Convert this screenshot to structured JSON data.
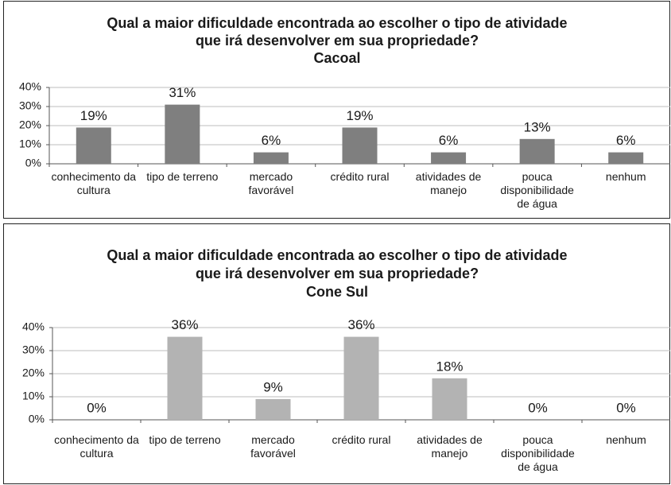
{
  "chart_data": [
    {
      "type": "bar",
      "title": [
        "Qual a maior dificuldade encontrada ao escolher o tipo de atividade",
        "que irá desenvolver em sua propriedade?",
        "Cacoal"
      ],
      "categories": [
        "conhecimento da cultura",
        "tipo de terreno",
        "mercado favorável",
        "crédito rural",
        "atividades de manejo",
        "pouca disponibilidade de água",
        "nenhum"
      ],
      "values": [
        19,
        31,
        6,
        19,
        6,
        13,
        6
      ],
      "value_labels": [
        "19%",
        "31%",
        "6%",
        "19%",
        "6%",
        "13%",
        "6%"
      ],
      "color": "#7f7f7f",
      "ylim": [
        0,
        40
      ],
      "yticks": [
        {
          "value": 0,
          "label": "0%"
        },
        {
          "value": 10,
          "label": "10%"
        },
        {
          "value": 20,
          "label": "20%"
        },
        {
          "value": 30,
          "label": "30%"
        },
        {
          "value": 40,
          "label": "40%"
        }
      ],
      "grid": true
    },
    {
      "type": "bar",
      "title": [
        "Qual a maior dificuldade encontrada ao escolher o tipo de atividade",
        "que irá desenvolver em sua propriedade?",
        "Cone Sul"
      ],
      "categories": [
        "conhecimento da cultura",
        "tipo de terreno",
        "mercado favorável",
        "crédito rural",
        "atividades de manejo",
        "pouca disponibilidade de água",
        "nenhum"
      ],
      "values": [
        0,
        36,
        9,
        36,
        18,
        0,
        0
      ],
      "value_labels": [
        "0%",
        "36%",
        "9%",
        "36%",
        "18%",
        "0%",
        "0%"
      ],
      "color": "#b3b3b3",
      "ylim": [
        0,
        40
      ],
      "yticks": [
        {
          "value": 0,
          "label": "0%"
        },
        {
          "value": 10,
          "label": "10%"
        },
        {
          "value": 20,
          "label": "20%"
        },
        {
          "value": 30,
          "label": "30%"
        },
        {
          "value": 40,
          "label": "40%"
        }
      ],
      "grid": true
    }
  ]
}
